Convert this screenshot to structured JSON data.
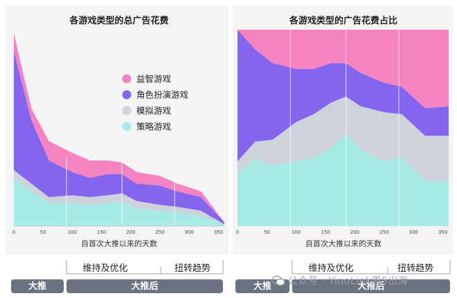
{
  "colors": {
    "puzzle": "#f583c2",
    "rpg": "#8466ee",
    "sim": "#cdd2db",
    "strategy": "#a6ece4",
    "panel_bg": "#f4f4f5",
    "phase_bar": "#6b7380"
  },
  "left_chart": {
    "title": "各游戏类型的总广告花费",
    "xlabel": "自首次大推以来的天数",
    "x_ticks": [
      "0",
      "50",
      "100",
      "150",
      "200",
      "250",
      "300",
      "350"
    ],
    "legend": [
      "益智游戏",
      "角色扮演游戏",
      "模拟游戏",
      "策略游戏"
    ]
  },
  "right_chart": {
    "title": "各游戏类型的广告花费占比",
    "xlabel": "自首次大推以来的天数",
    "x_ticks": [
      "0",
      "50",
      "100",
      "150",
      "200",
      "250",
      "300",
      "350"
    ]
  },
  "phases": {
    "big_push": "大推",
    "after_push": "大推后",
    "maintain": "维持及优化",
    "turnaround": "扭转趋势"
  },
  "watermark": "公众号 · YinoLink周5出海",
  "chart_data": [
    {
      "type": "area",
      "stacked": true,
      "title": "各游戏类型的总广告花费",
      "xlabel": "自首次大推以来的天数",
      "ylabel": "",
      "x": [
        0,
        30,
        60,
        100,
        130,
        160,
        185,
        210,
        250,
        280,
        320,
        360
      ],
      "xlim": [
        0,
        360
      ],
      "ylim": [
        0,
        100
      ],
      "series": [
        {
          "name": "策略游戏",
          "values": [
            25,
            18,
            12,
            12,
            11,
            12,
            13,
            9,
            8,
            7,
            5,
            1
          ]
        },
        {
          "name": "模拟游戏",
          "values": [
            4,
            4,
            3,
            4,
            4,
            4,
            4,
            4,
            3,
            3,
            3,
            0
          ]
        },
        {
          "name": "角色扮演游戏",
          "values": [
            62,
            33,
            19,
            12,
            10,
            11,
            10,
            9,
            10,
            8,
            7,
            1
          ]
        },
        {
          "name": "益智游戏",
          "values": [
            9,
            6,
            10,
            10,
            9,
            7,
            6,
            6,
            5,
            4,
            3,
            0
          ]
        }
      ],
      "legend_position": "top-right",
      "grid": false
    },
    {
      "type": "area",
      "stacked": true,
      "normalized": true,
      "title": "各游戏类型的广告花费占比",
      "xlabel": "自首次大推以来的天数",
      "ylabel": "",
      "x": [
        0,
        30,
        60,
        100,
        130,
        160,
        185,
        210,
        250,
        280,
        320,
        360
      ],
      "xlim": [
        0,
        360
      ],
      "ylim": [
        0,
        100
      ],
      "series": [
        {
          "name": "策略游戏",
          "values": [
            27,
            34,
            31,
            33,
            35,
            40,
            47,
            39,
            33,
            35,
            23,
            23
          ]
        },
        {
          "name": "模拟游戏",
          "values": [
            6,
            9,
            13,
            20,
            22,
            23,
            19,
            22,
            25,
            22,
            23,
            23
          ]
        },
        {
          "name": "角色扮演游戏",
          "values": [
            67,
            47,
            39,
            27,
            23,
            20,
            17,
            17,
            15,
            14,
            14,
            15
          ]
        },
        {
          "name": "益智游戏",
          "values": [
            0,
            10,
            17,
            20,
            20,
            17,
            17,
            22,
            27,
            29,
            40,
            39
          ]
        }
      ],
      "grid": true
    }
  ]
}
